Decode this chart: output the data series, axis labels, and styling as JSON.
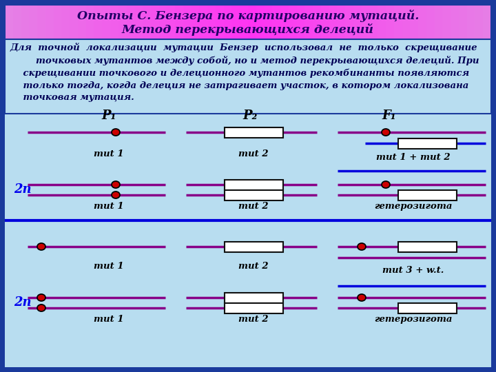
{
  "title_line1": "Опыты С. Бензера по картированию мутаций.",
  "title_line2": "Метод перекрывающихся делеций",
  "bg_outer": "#1a3a9c",
  "bg_inner": "#b8ddf0",
  "title_bg_left": "#ee88ee",
  "title_bg_mid": "#dd44ee",
  "title_bg_right": "#ee88ee",
  "title_color": "#220066",
  "line_color_purple": "#880088",
  "line_color_blue": "#0000dd",
  "dot_outer": "#cc0000",
  "dot_inner": "#000000",
  "box_fill": "#ffffff",
  "box_edge": "#111111",
  "text_body_color": "#000055",
  "label_2n_color": "#0000ee",
  "label_mut_color": "#000000",
  "P1": "P₁",
  "P2": "P₂",
  "F1": "F₁",
  "mut1": "mut 1",
  "mut2": "mut 2",
  "mut1_mut2": "mut 1 + mut 2",
  "mut3_wt": "mut 3 + w.t.",
  "geterozigota": "гетерозигота",
  "label_2n": "2n",
  "body_text": "Для  точной  локализации  мутации  Бензер  использовал  не  только  скрещивание\n        точковых мутантов между собой, но и метод перекрывающихся делеций. При\n    скрещивании точкового и делеционного мутантов рекомбинанты появляются\n    только тогда, когда делеция не затрагивает участок, в котором локализована\n    точковая мутация."
}
